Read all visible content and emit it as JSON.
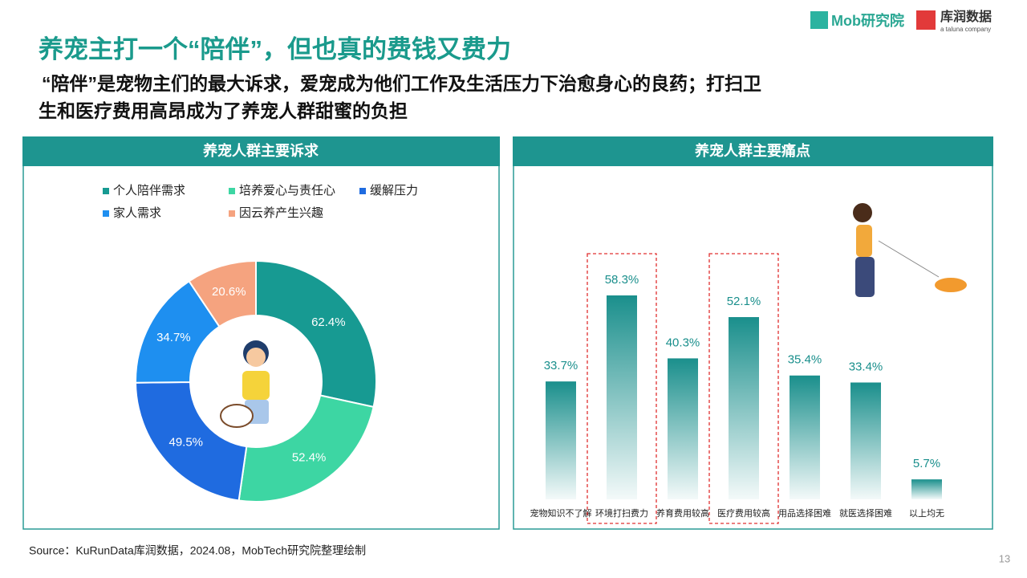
{
  "header": {
    "title": "养宠主打一个“陪伴”，但也真的费钱又费力",
    "subtitle_line1": "“陪伴”是宠物主们的最大诉求，爱宠成为他们工作及生活压力下治愈身心的良药；打扫卫",
    "subtitle_line2": "生和医疗费用高昂成为了养宠人群甜蜜的负担"
  },
  "logo": {
    "mob": "Mob研究院",
    "kurun": "库润数据",
    "kurun_sub": "a taluna company"
  },
  "chart_data": [
    {
      "type": "donut",
      "title": "养宠人群主要诉求",
      "categories": [
        "个人陪伴需求",
        "培养爱心与责任心",
        "缓解压力",
        "家人需求",
        "因云养产生兴趣"
      ],
      "values": [
        62.4,
        52.4,
        49.5,
        34.7,
        20.6
      ],
      "value_labels": [
        "62.4%",
        "52.4%",
        "49.5%",
        "34.7%",
        "20.6%"
      ],
      "colors": [
        "#179a92",
        "#3dd6a3",
        "#1f6be0",
        "#1e8ff0",
        "#f5a37f"
      ]
    },
    {
      "type": "bar",
      "title": "养宠人群主要痛点",
      "categories": [
        "宠物知识不了解",
        "环境打扫费力",
        "养育费用较高",
        "医疗费用较高",
        "用品选择困难",
        "就医选择困难",
        "以上均无"
      ],
      "values": [
        33.7,
        58.3,
        40.3,
        52.1,
        35.4,
        33.4,
        5.7
      ],
      "value_labels": [
        "33.7%",
        "58.3%",
        "40.3%",
        "52.1%",
        "35.4%",
        "33.4%",
        "5.7%"
      ],
      "color": "#1a8f8c",
      "highlight": [
        1,
        3
      ]
    }
  ],
  "source": "Source：KuRunData库润数据，2024.08，MobTech研究院整理绘制",
  "page_number": "13"
}
